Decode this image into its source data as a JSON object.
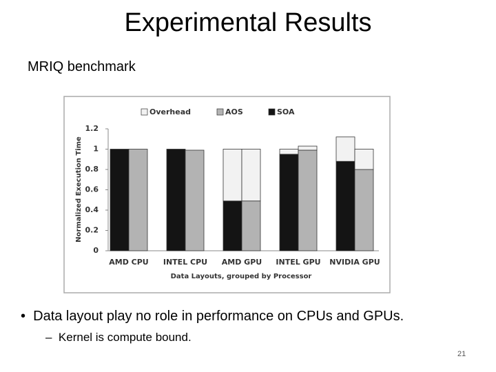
{
  "slide": {
    "title": "Experimental Results",
    "subtitle": "MRIQ benchmark",
    "bullets": [
      "Data layout play no role in performance on CPUs and GPUs."
    ],
    "sub_bullets": [
      "Kernel is compute bound."
    ],
    "page_number": "21"
  },
  "chart_data": {
    "type": "bar",
    "stacked": true,
    "y_label": "Normalized Execution Time",
    "x_label": "Data Layouts, grouped by Processor",
    "categories": [
      "AMD CPU",
      "INTEL CPU",
      "AMD GPU",
      "INTEL GPU",
      "NVIDIA GPU"
    ],
    "series": [
      {
        "name": "Overhead",
        "color": "#f2f2f2",
        "values": [
          [
            0,
            0
          ],
          [
            0,
            0
          ],
          [
            0.51,
            0.51
          ],
          [
            0.05,
            0.04
          ],
          [
            0.24,
            0.2
          ]
        ]
      },
      {
        "name": "AOS",
        "color": "#b3b3b3",
        "values": [
          1,
          0.99,
          0.49,
          0.99,
          0.8
        ]
      },
      {
        "name": "SOA",
        "color": "#141414",
        "values": [
          1,
          1,
          0.49,
          0.95,
          0.88
        ]
      }
    ],
    "ylim": [
      0,
      1.2
    ],
    "yticks": [
      0,
      0.2,
      0.4,
      0.6,
      0.8,
      1,
      1.2
    ]
  }
}
